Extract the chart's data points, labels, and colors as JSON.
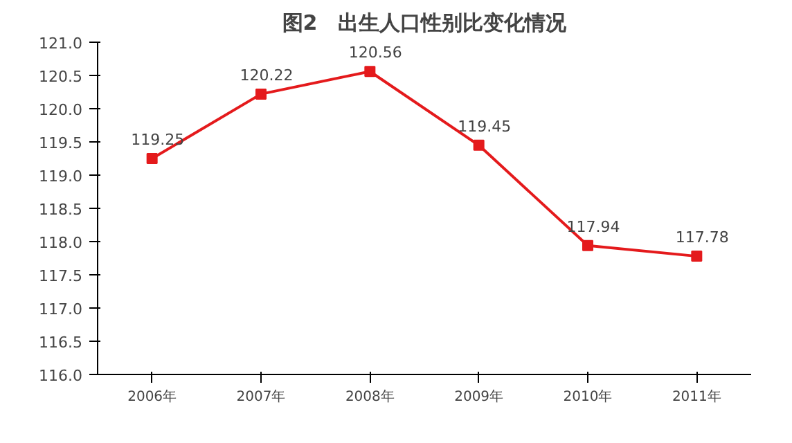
{
  "chart_data": {
    "type": "line",
    "title": "图2　出生人口性别比变化情况",
    "categories": [
      "2006年",
      "2007年",
      "2008年",
      "2009年",
      "2010年",
      "2011年"
    ],
    "series": [
      {
        "color": "#e41a1c",
        "values": [
          119.25,
          120.22,
          120.56,
          119.45,
          117.94,
          117.78
        ]
      }
    ],
    "ylim": [
      116,
      121
    ],
    "yticks": [
      {
        "value": 116,
        "label": "116.0"
      },
      {
        "value": 116.5,
        "label": "116.5"
      },
      {
        "value": 117,
        "label": "117.0"
      },
      {
        "value": 117.5,
        "label": "117.5"
      },
      {
        "value": 118,
        "label": "118.0"
      },
      {
        "value": 118.5,
        "label": "118.5"
      },
      {
        "value": 119,
        "label": "119.0"
      },
      {
        "value": 119.5,
        "label": "119.5"
      },
      {
        "value": 120,
        "label": "120.0"
      },
      {
        "value": 120.5,
        "label": "120.5"
      },
      {
        "value": 121,
        "label": "121.0"
      }
    ],
    "data_labels": true,
    "marker": "square",
    "line_style": "solid"
  }
}
